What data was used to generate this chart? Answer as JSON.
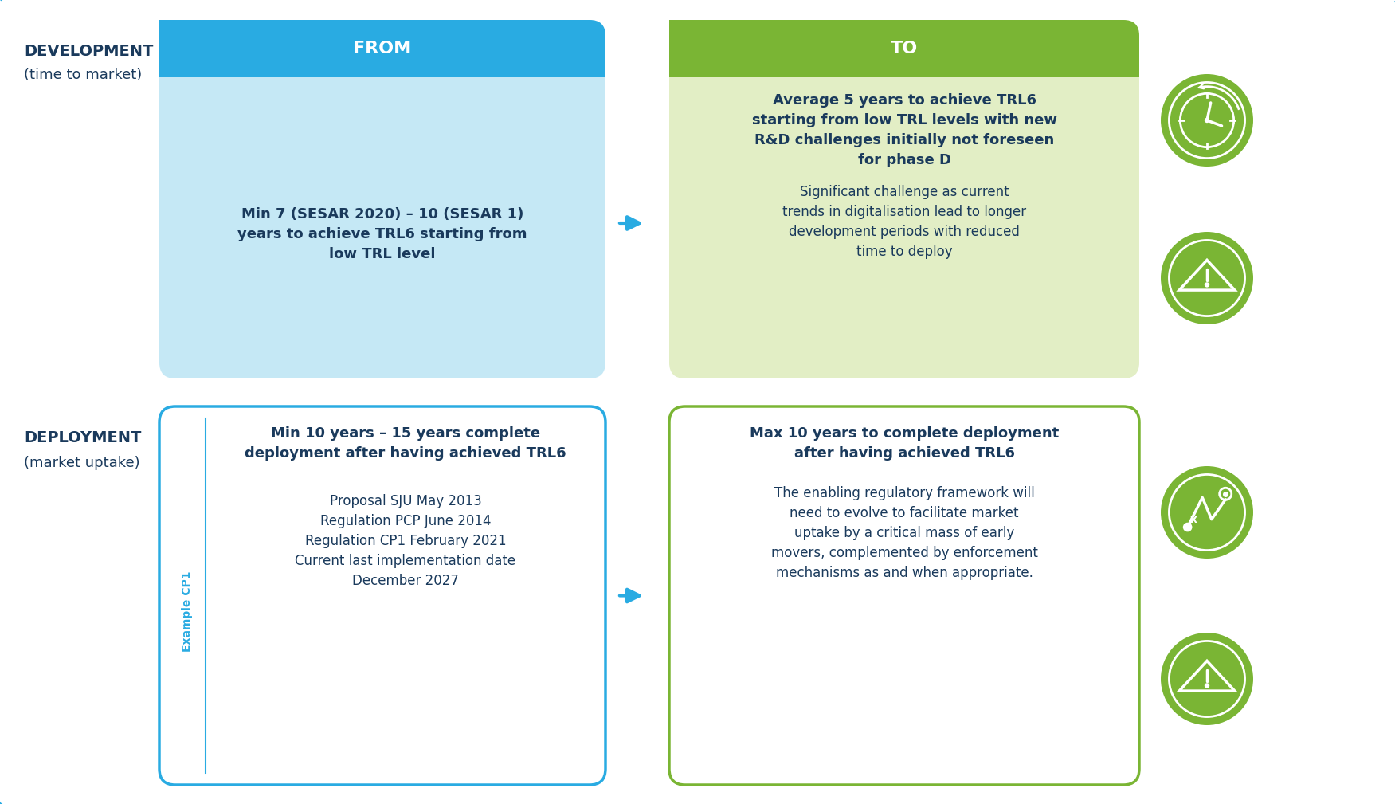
{
  "fig_width": 17.51,
  "fig_height": 10.09,
  "bg_color": "#ffffff",
  "outer_border_color": "#29ABE2",
  "dev_label_line1": "DEVELOPMENT",
  "dev_label_line2": "(time to market)",
  "dep_label_line1": "DEPLOYMENT",
  "dep_label_line2": "(market uptake)",
  "label_color": "#1A3A5C",
  "from_header_text": "FROM",
  "to_header_text": "TO",
  "from_header_bg": "#29ABE2",
  "to_header_bg": "#7AB534",
  "header_text_color": "#FFFFFF",
  "dev_from_body_bg": "#C5E8F5",
  "dev_to_body_bg": "#E2EEC5",
  "dep_from_body_bg": "#FFFFFF",
  "dep_to_body_bg": "#FFFFFF",
  "dep_from_border": "#29ABE2",
  "dep_to_border": "#7AB534",
  "dev_from_text": "Min 7 (SESAR 2020) – 10 (SESAR 1)\nyears to achieve TRL6 starting from\nlow TRL level",
  "dev_to_bold_text": "Average 5 years to achieve TRL6\nstarting from low TRL levels with new\nR&D challenges initially not foreseen\nfor phase D",
  "dev_to_normal_text": "Significant challenge as current\ntrends in digitalisation lead to longer\ndevelopment periods with reduced\ntime to deploy",
  "dep_from_bold_text": "Min 10 years – 15 years complete\ndeployment after having achieved TRL6",
  "dep_from_normal_text": "Proposal SJU May 2013\nRegulation PCP June 2014\nRegulation CP1 February 2021\nCurrent last implementation date\nDecember 2027",
  "dep_cp1_label": "Example CP1",
  "dep_to_bold_text": "Max 10 years to complete deployment\nafter having achieved TRL6",
  "dep_to_normal_text": "The enabling regulatory framework will\nneed to evolve to facilitate market\nuptake by a critical mass of early\nmovers, complemented by enforcement\nmechanisms as and when appropriate.",
  "arrow_color": "#29ABE2",
  "text_dark": "#1A3A5C",
  "icon_bg": "#7AB534",
  "icon_fg": "#FFFFFF"
}
